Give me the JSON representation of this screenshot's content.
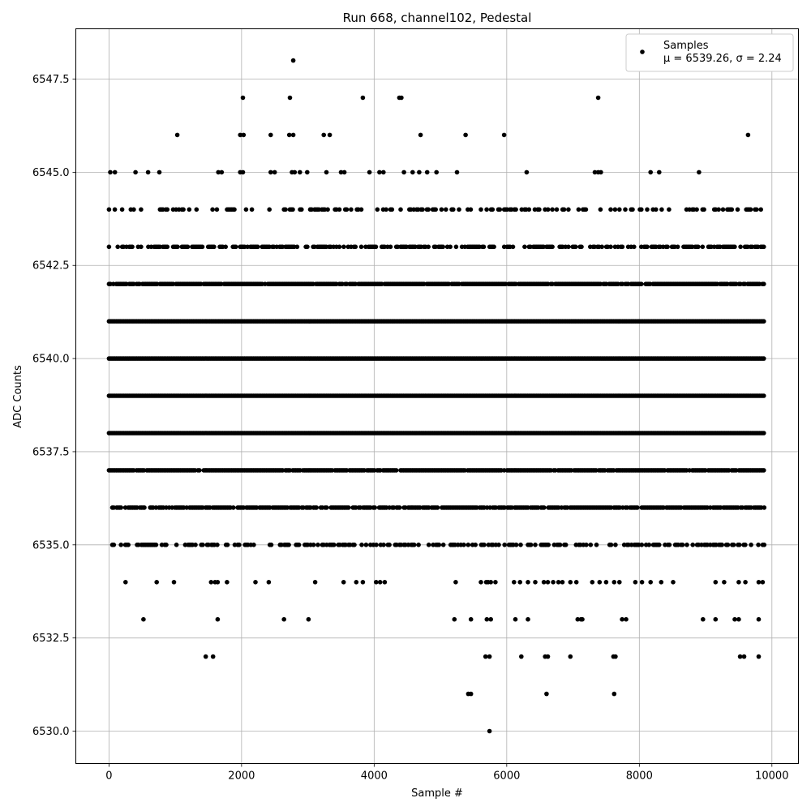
{
  "chart_data": {
    "type": "scatter",
    "title": "Run 668, channel102, Pedestal",
    "xlabel": "Sample #",
    "ylabel": "ADC Counts",
    "xlim": [
      -500,
      10400
    ],
    "ylim": [
      6529.13,
      6548.85
    ],
    "x_ticks": [
      0,
      2000,
      4000,
      6000,
      8000,
      10000
    ],
    "x_tick_labels": [
      "0",
      "2000",
      "4000",
      "6000",
      "8000",
      "10000"
    ],
    "y_ticks": [
      6530.0,
      6532.5,
      6535.0,
      6537.5,
      6540.0,
      6542.5,
      6545.0,
      6547.5
    ],
    "y_tick_labels": [
      "6530.0",
      "6532.5",
      "6535.0",
      "6537.5",
      "6540.0",
      "6542.5",
      "6545.0",
      "6547.5"
    ],
    "grid": true,
    "legend": {
      "position": "top-right",
      "entries": [
        "Samples",
        "μ = 6539.26, σ = 2.24"
      ]
    },
    "marker_color": "#000000",
    "series": [
      {
        "name": "Samples",
        "sparse_levels": [
          {
            "y": 6548,
            "x": [
              2780
            ]
          },
          {
            "y": 6547,
            "x": [
              2020,
              2730,
              3830,
              4380,
              4410,
              7380
            ]
          },
          {
            "y": 6546,
            "x": [
              1030,
              1980,
              2030,
              2440,
              2720,
              2780,
              3240,
              3330,
              4700,
              5380,
              5960,
              9640
            ]
          },
          {
            "y": 6545,
            "x": [
              20,
              90,
              400,
              590,
              760,
              1650,
              1700,
              1980,
              2020,
              2440,
              2500,
              2760,
              2800,
              2880,
              2990,
              3280,
              3500,
              3550,
              3930,
              4080,
              4140,
              4450,
              4580,
              4680,
              4800,
              4940,
              5250,
              6300,
              7330,
              7380,
              7420,
              8170,
              8300,
              8900
            ]
          },
          {
            "y": 6534,
            "x": [
              250,
              720,
              980,
              1540,
              1600,
              1640,
              1780,
              2210,
              2410,
              3110,
              3540,
              3730,
              3830,
              4030,
              4090,
              4160,
              5230,
              5610,
              5690,
              5720,
              5760,
              5830,
              6110,
              6200,
              6320,
              6430,
              6560,
              6620,
              6700,
              6780,
              6840,
              6960,
              7050,
              7290,
              7400,
              7500,
              7620,
              7700,
              7940,
              8040,
              8170,
              8330,
              8510,
              9150,
              9280,
              9500,
              9600,
              9800,
              9860
            ]
          },
          {
            "y": 6533,
            "x": [
              520,
              1640,
              2640,
              3010,
              5210,
              5460,
              5700,
              5760,
              6130,
              6320,
              7070,
              7120,
              7140,
              7740,
              7800,
              8960,
              9150,
              9440,
              9500,
              9800
            ]
          },
          {
            "y": 6532,
            "x": [
              1460,
              1570,
              5680,
              5740,
              6220,
              6580,
              6620,
              6960,
              7610,
              7640,
              9520,
              9580,
              9800
            ]
          },
          {
            "y": 6531,
            "x": [
              5420,
              5460,
              6600,
              7620
            ]
          },
          {
            "y": 6530,
            "x": [
              5740
            ]
          }
        ],
        "dense_levels": [
          {
            "y": 6544,
            "x_min": 0,
            "x_max": 9890,
            "fill": 0.35
          },
          {
            "y": 6543,
            "x_min": 0,
            "x_max": 9890,
            "fill": 0.6
          },
          {
            "y": 6542,
            "x_min": 0,
            "x_max": 9890,
            "fill": 0.9
          },
          {
            "y": 6541,
            "x_min": 0,
            "x_max": 9890,
            "fill": 1.0
          },
          {
            "y": 6540,
            "x_min": 0,
            "x_max": 9890,
            "fill": 1.0
          },
          {
            "y": 6539,
            "x_min": 0,
            "x_max": 9890,
            "fill": 1.0
          },
          {
            "y": 6538,
            "x_min": 0,
            "x_max": 9890,
            "fill": 1.0
          },
          {
            "y": 6537,
            "x_min": 0,
            "x_max": 9890,
            "fill": 0.95
          },
          {
            "y": 6536,
            "x_min": 50,
            "x_max": 9890,
            "fill": 0.8
          },
          {
            "y": 6535,
            "x_min": 50,
            "x_max": 9890,
            "fill": 0.45
          }
        ]
      }
    ]
  }
}
